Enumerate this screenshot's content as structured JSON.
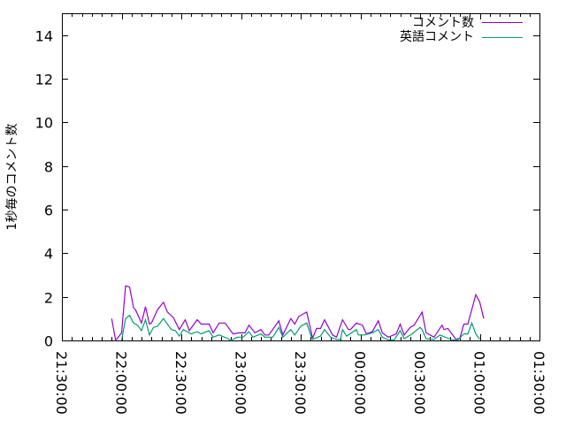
{
  "chart_data": {
    "type": "line",
    "title": "",
    "xlabel": "",
    "ylabel": "1秒毎のコメント数",
    "xlim": [
      "21:30:00",
      "01:30:00"
    ],
    "ylim": [
      0,
      15
    ],
    "x_ticks": [
      "21:30:00",
      "22:00:00",
      "22:30:00",
      "23:00:00",
      "23:30:00",
      "00:00:00",
      "00:30:00",
      "01:00:00",
      "01:30:00"
    ],
    "y_ticks": [
      0,
      2,
      4,
      6,
      8,
      10,
      12,
      14
    ],
    "grid": false,
    "legend_position": "top-right",
    "series": [
      {
        "name": "コメント数",
        "color": "#9400d3",
        "points": [
          [
            "21:55",
            1.0
          ],
          [
            "21:57",
            0
          ],
          [
            "22:00",
            0.35
          ],
          [
            "22:02",
            2.5
          ],
          [
            "22:04",
            2.45
          ],
          [
            "22:06",
            1.5
          ],
          [
            "22:07",
            1.4
          ],
          [
            "22:10",
            0.8
          ],
          [
            "22:12",
            1.55
          ],
          [
            "22:14",
            0.75
          ],
          [
            "22:15",
            0.8
          ],
          [
            "22:18",
            1.4
          ],
          [
            "22:21",
            1.75
          ],
          [
            "22:23",
            1.3
          ],
          [
            "22:26",
            1.05
          ],
          [
            "22:29",
            0.5
          ],
          [
            "22:32",
            0.95
          ],
          [
            "22:34",
            0.45
          ],
          [
            "22:38",
            0.95
          ],
          [
            "22:40",
            0.75
          ],
          [
            "22:44",
            0.75
          ],
          [
            "22:46",
            0.35
          ],
          [
            "22:49",
            0.8
          ],
          [
            "22:52",
            0.8
          ],
          [
            "22:56",
            0.3
          ],
          [
            "22:59",
            0.35
          ],
          [
            "23:02",
            0.35
          ],
          [
            "23:04",
            0.7
          ],
          [
            "23:07",
            0.35
          ],
          [
            "23:10",
            0.5
          ],
          [
            "23:12",
            0.25
          ],
          [
            "23:14",
            0.25
          ],
          [
            "23:19",
            0.9
          ],
          [
            "23:21",
            0.25
          ],
          [
            "23:25",
            1.0
          ],
          [
            "23:27",
            0.75
          ],
          [
            "23:29",
            1.1
          ],
          [
            "23:33",
            1.3
          ],
          [
            "23:34",
            0.9
          ],
          [
            "23:36",
            0.1
          ],
          [
            "23:38",
            0.55
          ],
          [
            "23:40",
            0.55
          ],
          [
            "23:42",
            0.95
          ],
          [
            "23:46",
            0.25
          ],
          [
            "23:48",
            0.15
          ],
          [
            "23:51",
            0.95
          ],
          [
            "23:54",
            0.5
          ],
          [
            "23:55",
            0.5
          ],
          [
            "23:58",
            0.8
          ],
          [
            "00:01",
            0.7
          ],
          [
            "00:03",
            0.3
          ],
          [
            "00:06",
            0.4
          ],
          [
            "00:09",
            0.9
          ],
          [
            "00:11",
            0.35
          ],
          [
            "00:14",
            0.15
          ],
          [
            "00:18",
            0.3
          ],
          [
            "00:20",
            0.75
          ],
          [
            "00:22",
            0.25
          ],
          [
            "00:25",
            0.6
          ],
          [
            "00:27",
            0.7
          ],
          [
            "00:31",
            1.3
          ],
          [
            "00:33",
            0.35
          ],
          [
            "00:37",
            0.15
          ],
          [
            "00:41",
            0.7
          ],
          [
            "00:42",
            0.5
          ],
          [
            "00:44",
            0.55
          ],
          [
            "00:48",
            0.05
          ],
          [
            "00:50",
            0.1
          ],
          [
            "00:52",
            0.75
          ],
          [
            "00:54",
            0.75
          ],
          [
            "00:58",
            2.1
          ],
          [
            "01:00",
            1.75
          ],
          [
            "01:02",
            1.0
          ]
        ]
      },
      {
        "name": "英語コメント",
        "color": "#009e73",
        "points": [
          [
            "22:00",
            0
          ],
          [
            "22:02",
            1.0
          ],
          [
            "22:04",
            1.15
          ],
          [
            "22:06",
            0.8
          ],
          [
            "22:08",
            0.7
          ],
          [
            "22:10",
            0.45
          ],
          [
            "22:12",
            0.95
          ],
          [
            "22:14",
            0.25
          ],
          [
            "22:16",
            0.6
          ],
          [
            "22:18",
            0.65
          ],
          [
            "22:21",
            1.0
          ],
          [
            "22:25",
            0.5
          ],
          [
            "22:27",
            0.45
          ],
          [
            "22:29",
            0.2
          ],
          [
            "22:31",
            0.5
          ],
          [
            "22:35",
            0.3
          ],
          [
            "22:38",
            0.4
          ],
          [
            "22:40",
            0.3
          ],
          [
            "22:44",
            0.45
          ],
          [
            "22:46",
            0.15
          ],
          [
            "22:49",
            0.25
          ],
          [
            "22:53",
            0.1
          ],
          [
            "22:55",
            0
          ],
          [
            "22:58",
            0.15
          ],
          [
            "23:01",
            0.15
          ],
          [
            "23:04",
            0.4
          ],
          [
            "23:06",
            0.15
          ],
          [
            "23:10",
            0.3
          ],
          [
            "23:12",
            0.15
          ],
          [
            "23:16",
            0.15
          ],
          [
            "23:19",
            0.6
          ],
          [
            "23:21",
            0.15
          ],
          [
            "23:25",
            0.5
          ],
          [
            "23:27",
            0.25
          ],
          [
            "23:30",
            0.65
          ],
          [
            "23:33",
            0.8
          ],
          [
            "23:35",
            0.25
          ],
          [
            "23:36",
            0.05
          ],
          [
            "23:40",
            0.2
          ],
          [
            "23:42",
            0.5
          ],
          [
            "23:45",
            0.15
          ],
          [
            "23:48",
            0.05
          ],
          [
            "23:50",
            0.05
          ],
          [
            "23:51",
            0.5
          ],
          [
            "23:53",
            0.2
          ],
          [
            "23:58",
            0.5
          ],
          [
            "23:59",
            0.25
          ],
          [
            "00:02",
            0.25
          ],
          [
            "00:06",
            0.35
          ],
          [
            "00:09",
            0.5
          ],
          [
            "00:11",
            0.15
          ],
          [
            "00:14",
            0.03
          ],
          [
            "00:17",
            0.03
          ],
          [
            "00:20",
            0.45
          ],
          [
            "00:22",
            0.08
          ],
          [
            "00:26",
            0.3
          ],
          [
            "00:30",
            0.6
          ],
          [
            "00:31",
            0.5
          ],
          [
            "00:33",
            0.08
          ],
          [
            "00:37",
            0.05
          ],
          [
            "00:40",
            0.25
          ],
          [
            "00:44",
            0.1
          ],
          [
            "00:46",
            0.03
          ],
          [
            "00:49",
            0.03
          ],
          [
            "00:52",
            0.3
          ],
          [
            "00:54",
            0.3
          ],
          [
            "00:56",
            0.8
          ],
          [
            "00:58",
            0.3
          ],
          [
            "01:00",
            0.05
          ]
        ]
      }
    ]
  }
}
